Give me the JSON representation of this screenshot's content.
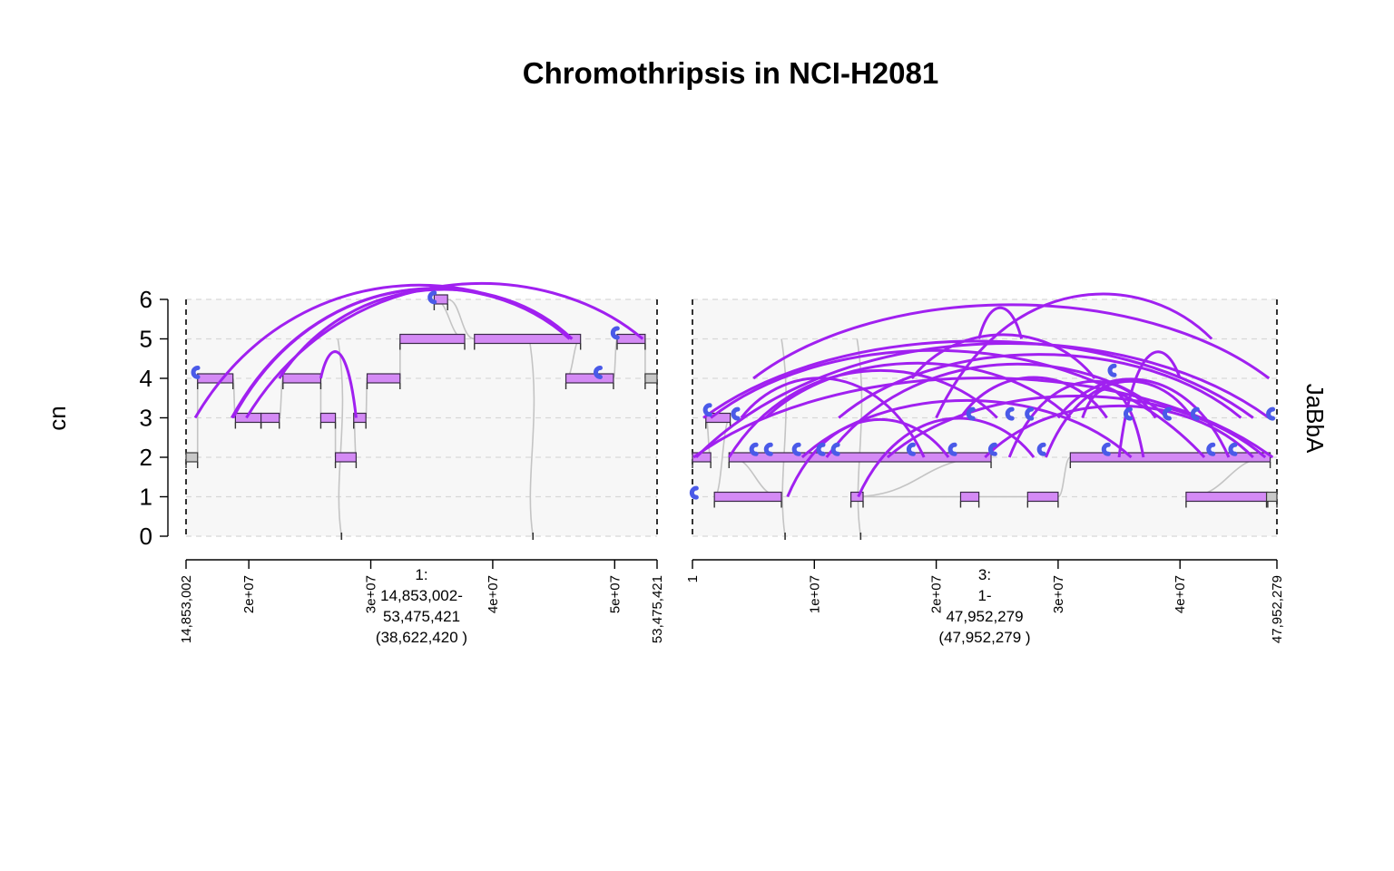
{
  "chart_data": {
    "type": "genome-graph",
    "title": "Chromothripsis in NCI-H2081",
    "ylabel": "cn",
    "track_label": "JaBbA",
    "ylim": [
      0,
      6
    ],
    "yticks": [
      "0",
      "1",
      "2",
      "3",
      "4",
      "5",
      "6"
    ],
    "grid": true,
    "colors": {
      "amplified_segment": "#d48af5",
      "reference_segment": "#c8c8c8",
      "alt_edge": "#a020f0",
      "ref_edge": "#c4c4c4",
      "loose_end": "#4a5ae8"
    },
    "windows": [
      {
        "chrom": "1",
        "start": 14853002,
        "end": 53475421,
        "label_lines": [
          "1:",
          "14,853,002-",
          "53,475,421",
          "(38,622,420 )"
        ],
        "ticks": [
          {
            "pos": 14853002,
            "label": "14,853,002"
          },
          {
            "pos": 20000000,
            "label": "2e+07"
          },
          {
            "pos": 30000000,
            "label": "3e+07"
          },
          {
            "pos": 40000000,
            "label": "4e+07"
          },
          {
            "pos": 50000000,
            "label": "5e+07"
          },
          {
            "pos": 53475421,
            "label": "53,475,421"
          }
        ],
        "segments": [
          {
            "start": 14853002,
            "end": 15800000,
            "cn": 2,
            "amp": false
          },
          {
            "start": 15800000,
            "end": 18700000,
            "cn": 4,
            "amp": true
          },
          {
            "start": 18900000,
            "end": 21000000,
            "cn": 3,
            "amp": true
          },
          {
            "start": 21000000,
            "end": 22500000,
            "cn": 3,
            "amp": true
          },
          {
            "start": 22800000,
            "end": 25900000,
            "cn": 4,
            "amp": true
          },
          {
            "start": 25900000,
            "end": 27100000,
            "cn": 3,
            "amp": true
          },
          {
            "start": 27100000,
            "end": 28800000,
            "cn": 2,
            "amp": true
          },
          {
            "start": 28600000,
            "end": 29600000,
            "cn": 3,
            "amp": true
          },
          {
            "start": 29700000,
            "end": 32400000,
            "cn": 4,
            "amp": true
          },
          {
            "start": 32400000,
            "end": 37700000,
            "cn": 5,
            "amp": true
          },
          {
            "start": 35200000,
            "end": 36300000,
            "cn": 6,
            "amp": true
          },
          {
            "start": 38500000,
            "end": 47200000,
            "cn": 5,
            "amp": true
          },
          {
            "start": 46000000,
            "end": 49900000,
            "cn": 4,
            "amp": true
          },
          {
            "start": 50200000,
            "end": 52500000,
            "cn": 5,
            "amp": true
          },
          {
            "start": 52500000,
            "end": 53475421,
            "cn": 4,
            "amp": false
          }
        ],
        "dips": [
          27600000,
          43300000
        ],
        "loose_ends": [
          {
            "pos": 15600000,
            "cn": 4.15
          },
          {
            "pos": 35000000,
            "cn": 6.05
          },
          {
            "pos": 50000000,
            "cn": 5.15
          },
          {
            "pos": 48600000,
            "cn": 4.15
          }
        ],
        "alt_edges": [
          {
            "from": 15600000,
            "fcn": 3,
            "to": 46500000,
            "tcn": 5
          },
          {
            "from": 18600000,
            "fcn": 3,
            "to": 46500000,
            "tcn": 5
          },
          {
            "from": 18700000,
            "fcn": 3,
            "to": 46300000,
            "tcn": 5
          },
          {
            "from": 19800000,
            "fcn": 3,
            "to": 52300000,
            "tcn": 5
          },
          {
            "from": 22500000,
            "fcn": 4,
            "to": 46500000,
            "tcn": 5
          },
          {
            "from": 25900000,
            "fcn": 4,
            "to": 28800000,
            "tcn": 3
          }
        ]
      },
      {
        "chrom": "3",
        "start": 1,
        "end": 47952279,
        "label_lines": [
          "3:",
          "1-",
          "47,952,279",
          "(47,952,279 )"
        ],
        "ticks": [
          {
            "pos": 1,
            "label": "1"
          },
          {
            "pos": 10000000,
            "label": "1e+07"
          },
          {
            "pos": 20000000,
            "label": "2e+07"
          },
          {
            "pos": 30000000,
            "label": "3e+07"
          },
          {
            "pos": 40000000,
            "label": "4e+07"
          },
          {
            "pos": 47952279,
            "label": "47,952,279"
          }
        ],
        "segments": [
          {
            "start": 1,
            "end": 1500000,
            "cn": 2,
            "amp": true
          },
          {
            "start": 1100000,
            "end": 3100000,
            "cn": 3,
            "amp": true
          },
          {
            "start": 1800000,
            "end": 7300000,
            "cn": 1,
            "amp": true
          },
          {
            "start": 3000000,
            "end": 24500000,
            "cn": 2,
            "amp": true
          },
          {
            "start": 13000000,
            "end": 14000000,
            "cn": 1,
            "amp": true
          },
          {
            "start": 22000000,
            "end": 23500000,
            "cn": 1,
            "amp": true
          },
          {
            "start": 27500000,
            "end": 30000000,
            "cn": 1,
            "amp": true
          },
          {
            "start": 31000000,
            "end": 47400000,
            "cn": 2,
            "amp": true
          },
          {
            "start": 40500000,
            "end": 47200000,
            "cn": 1,
            "amp": true
          },
          {
            "start": 47100000,
            "end": 47952279,
            "cn": 1,
            "amp": false
          }
        ],
        "dips": [
          7600000,
          13800000
        ],
        "loose_ends": [
          {
            "pos": 100000,
            "cn": 1.1
          },
          {
            "pos": 1200000,
            "cn": 3.2
          },
          {
            "pos": 3500000,
            "cn": 3.1
          },
          {
            "pos": 5000000,
            "cn": 2.2
          },
          {
            "pos": 6200000,
            "cn": 2.2
          },
          {
            "pos": 8500000,
            "cn": 2.2
          },
          {
            "pos": 10500000,
            "cn": 2.2
          },
          {
            "pos": 11700000,
            "cn": 2.2
          },
          {
            "pos": 17900000,
            "cn": 2.2
          },
          {
            "pos": 21300000,
            "cn": 2.2
          },
          {
            "pos": 22800000,
            "cn": 3.1
          },
          {
            "pos": 24600000,
            "cn": 2.2
          },
          {
            "pos": 26000000,
            "cn": 3.1
          },
          {
            "pos": 27600000,
            "cn": 3.1
          },
          {
            "pos": 28600000,
            "cn": 2.2
          },
          {
            "pos": 33900000,
            "cn": 2.2
          },
          {
            "pos": 34400000,
            "cn": 4.2
          },
          {
            "pos": 35700000,
            "cn": 3.1
          },
          {
            "pos": 38900000,
            "cn": 3.1
          },
          {
            "pos": 41200000,
            "cn": 3.1
          },
          {
            "pos": 42500000,
            "cn": 2.2
          },
          {
            "pos": 44300000,
            "cn": 2.2
          },
          {
            "pos": 47400000,
            "cn": 3.1
          }
        ],
        "alt_edges": [
          {
            "from": 100000,
            "fcn": 2,
            "to": 47600000,
            "tcn": 2
          },
          {
            "from": 300000,
            "fcn": 2,
            "to": 47300000,
            "tcn": 3
          },
          {
            "from": 900000,
            "fcn": 3,
            "to": 46000000,
            "tcn": 3
          },
          {
            "from": 1500000,
            "fcn": 3,
            "to": 42000000,
            "tcn": 2
          },
          {
            "from": 5000000,
            "fcn": 4,
            "to": 47300000,
            "tcn": 4
          },
          {
            "from": 7800000,
            "fcn": 1,
            "to": 21000000,
            "tcn": 2
          },
          {
            "from": 13600000,
            "fcn": 1,
            "to": 28000000,
            "tcn": 2
          },
          {
            "from": 18000000,
            "fcn": 4,
            "to": 33000000,
            "tcn": 4
          },
          {
            "from": 20000000,
            "fcn": 3,
            "to": 42600000,
            "tcn": 5
          },
          {
            "from": 23500000,
            "fcn": 5,
            "to": 27000000,
            "tcn": 5
          },
          {
            "from": 26000000,
            "fcn": 2,
            "to": 38000000,
            "tcn": 3
          },
          {
            "from": 30000000,
            "fcn": 3,
            "to": 44000000,
            "tcn": 2
          },
          {
            "from": 35000000,
            "fcn": 2,
            "to": 40000000,
            "tcn": 4
          },
          {
            "from": 6000000,
            "fcn": 3,
            "to": 31000000,
            "tcn": 3
          },
          {
            "from": 9000000,
            "fcn": 2,
            "to": 36000000,
            "tcn": 2
          },
          {
            "from": 12000000,
            "fcn": 3,
            "to": 45000000,
            "tcn": 3
          },
          {
            "from": 3000000,
            "fcn": 2,
            "to": 25000000,
            "tcn": 3
          },
          {
            "from": 16000000,
            "fcn": 2,
            "to": 47000000,
            "tcn": 2
          },
          {
            "from": 22000000,
            "fcn": 3,
            "to": 34000000,
            "tcn": 3
          },
          {
            "from": 29000000,
            "fcn": 2,
            "to": 41000000,
            "tcn": 3
          },
          {
            "from": 4000000,
            "fcn": 3,
            "to": 19000000,
            "tcn": 2
          },
          {
            "from": 11000000,
            "fcn": 2,
            "to": 39000000,
            "tcn": 3
          },
          {
            "from": 24000000,
            "fcn": 2,
            "to": 46000000,
            "tcn": 2
          },
          {
            "from": 32000000,
            "fcn": 3,
            "to": 37000000,
            "tcn": 2
          }
        ]
      }
    ]
  }
}
